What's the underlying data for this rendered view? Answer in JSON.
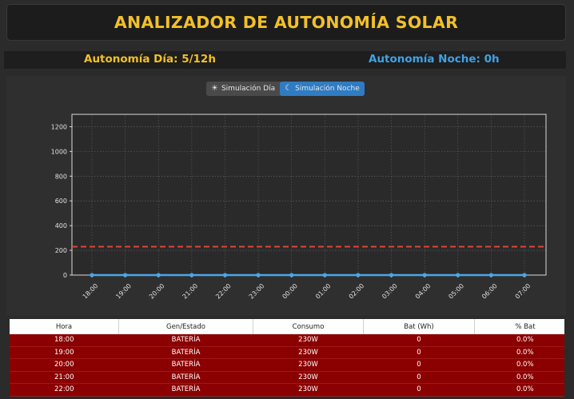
{
  "header": {
    "title": "ANALIZADOR DE AUTONOMÍA SOLAR"
  },
  "autonomy": {
    "day": "Autonomía Día: 5/12h",
    "night": "Autonomía Noche: 0h"
  },
  "simulation_toggle": {
    "day_label": "Simulación Día",
    "night_label": "Simulación Noche",
    "active": "night"
  },
  "chart_data": {
    "type": "line",
    "x": [
      "18:00",
      "19:00",
      "20:00",
      "21:00",
      "22:00",
      "23:00",
      "00:00",
      "01:00",
      "02:00",
      "03:00",
      "04:00",
      "05:00",
      "06:00",
      "07:00"
    ],
    "series": [
      {
        "values": [
          0,
          0,
          0,
          0,
          0,
          0,
          0,
          0,
          0,
          0,
          0,
          0,
          0,
          0
        ],
        "color": "#4aa6e8"
      }
    ],
    "reference_line": {
      "value": 230,
      "color": "#e0433a",
      "style": "dashed"
    },
    "ylim": [
      0,
      1300
    ],
    "yticks": [
      0,
      200,
      400,
      600,
      800,
      1000,
      1200
    ],
    "grid": true
  },
  "table": {
    "headers": [
      "Hora",
      "Gen/Estado",
      "Consumo",
      "Bat (Wh)",
      "% Bat"
    ],
    "rows": [
      [
        "18:00",
        "BATERÍA",
        "230W",
        "0",
        "0.0%"
      ],
      [
        "19:00",
        "BATERÍA",
        "230W",
        "0",
        "0.0%"
      ],
      [
        "20:00",
        "BATERÍA",
        "230W",
        "0",
        "0.0%"
      ],
      [
        "21:00",
        "BATERÍA",
        "230W",
        "0",
        "0.0%"
      ],
      [
        "22:00",
        "BATERÍA",
        "230W",
        "0",
        "0.0%"
      ]
    ]
  }
}
